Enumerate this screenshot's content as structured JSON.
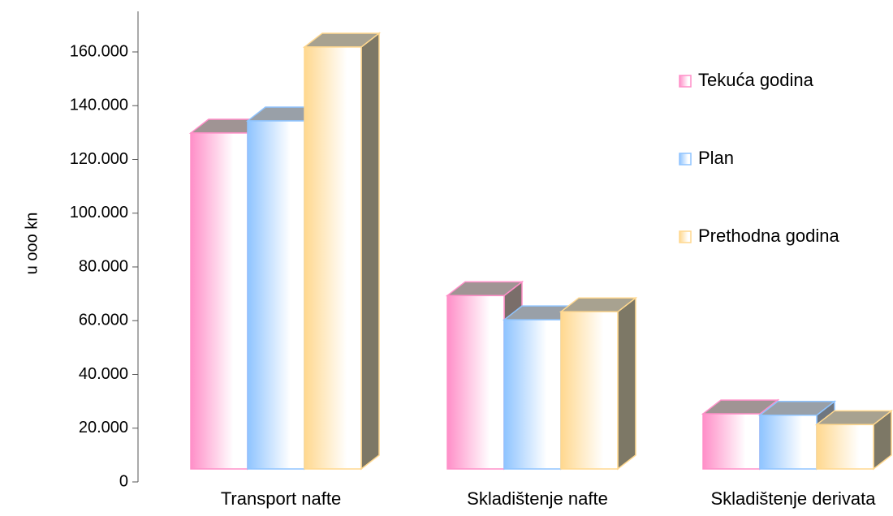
{
  "chart_data": {
    "type": "bar",
    "title": "",
    "xlabel": "",
    "ylabel": "u ooo kn",
    "ylim": [
      0,
      160000
    ],
    "yticks": [
      {
        "value": 0,
        "label": "0"
      },
      {
        "value": 20000,
        "label": "20.000"
      },
      {
        "value": 40000,
        "label": "40.000"
      },
      {
        "value": 60000,
        "label": "60.000"
      },
      {
        "value": 80000,
        "label": "80.000"
      },
      {
        "value": 100000,
        "label": "100.000"
      },
      {
        "value": 120000,
        "label": "120.000"
      },
      {
        "value": 140000,
        "label": "140.000"
      },
      {
        "value": 160000,
        "label": "160.000"
      }
    ],
    "categories": [
      "Transport nafte",
      "Skladištenje nafte",
      "Skladištenje derivata"
    ],
    "series": [
      {
        "name": "Tekuća godina",
        "values": [
          125000,
          64500,
          20500
        ],
        "color": "#ff8fc8"
      },
      {
        "name": "Plan",
        "values": [
          129500,
          55500,
          20000
        ],
        "color": "#8fc4ff"
      },
      {
        "name": "Prethodna godina",
        "values": [
          157000,
          58500,
          16500
        ],
        "color": "#ffd88f"
      }
    ],
    "grid": false,
    "legend": "right",
    "style": "3d-bars"
  }
}
